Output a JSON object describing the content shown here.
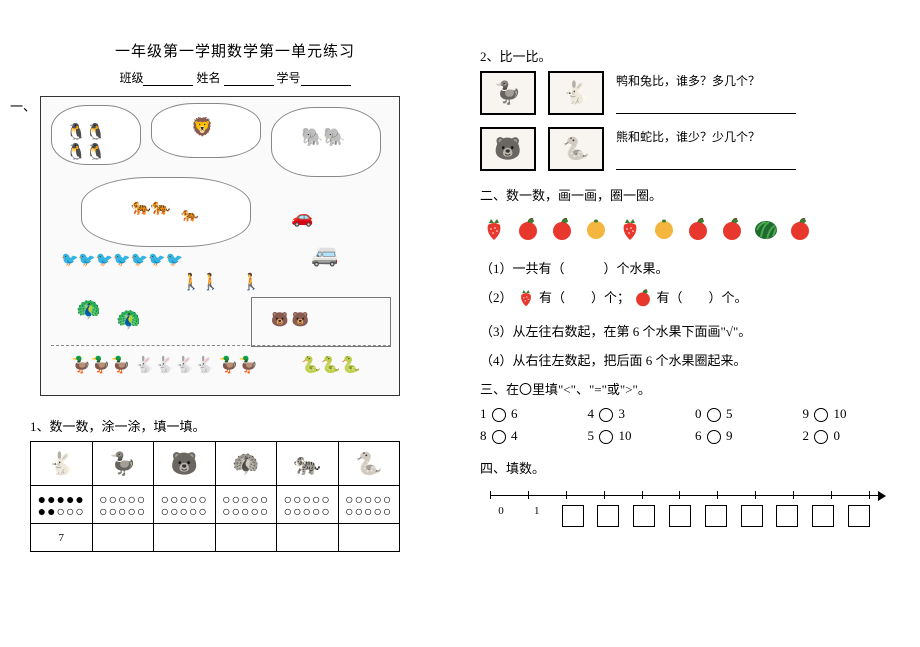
{
  "title": "一年级第一学期数学第一单元练习",
  "info": {
    "class_label": "班级",
    "name_label": "姓名",
    "id_label": "学号"
  },
  "section_one_marker": "一、",
  "q1": {
    "label": "1、数一数，涂一涂，填一填。",
    "animals": [
      "rabbit",
      "duck",
      "bear",
      "peacock",
      "tiger",
      "snake"
    ],
    "dots": {
      "filled_col0": 7,
      "empty_pattern": "○○○○○\n○○○○○"
    },
    "nums": [
      "7",
      "",
      "",
      "",
      "",
      ""
    ]
  },
  "q2": {
    "label": "2、比一比。",
    "row1": {
      "left": "duck",
      "right": "rabbit",
      "text": "鸭和兔比，谁多？多几个？"
    },
    "row2": {
      "left": "bear",
      "right": "snake",
      "text": "熊和蛇比，谁少？少几个？"
    }
  },
  "sec2": {
    "label": "二、数一数，画一画，圈一圈。",
    "fruits": [
      "strawberry",
      "apple",
      "apple",
      "orange",
      "strawberry",
      "orange",
      "apple",
      "apple",
      "watermelon",
      "apple"
    ],
    "sub1": "（1）一共有（　　　）个水果。",
    "sub2_a": "（2）",
    "sub2_b": "有（　　）个；",
    "sub2_c": "有（　　）个。",
    "sub3": "（3）从左往右数起，在第 6 个水果下面画\"√\"。",
    "sub4": "（4）从右往左数起，把后面 6 个水果圈起来。"
  },
  "sec3": {
    "label": "三、在〇里填\"<\"、\"=\"或\">\"。",
    "items": [
      "1 〇 6",
      "4 〇 3",
      "0 〇 5",
      "9 〇 10",
      "8 〇 4",
      "5 〇 10",
      "6 〇 9",
      "2 〇 0"
    ]
  },
  "sec4": {
    "label": "四、填数。",
    "start_labels": [
      "0",
      "1"
    ],
    "box_count": 9
  },
  "colors": {
    "apple": "#e8382d",
    "apple_leaf": "#3a7d2e",
    "strawberry": "#e8382d",
    "strawberry_leaf": "#3a7d2e",
    "orange": "#f4b63f",
    "watermelon_dark": "#1d6b2e",
    "watermelon_light": "#4aa84a"
  },
  "animal_glyphs": {
    "rabbit": "🐇",
    "duck": "🦆",
    "bear": "🐻",
    "peacock": "🦚",
    "tiger": "🐅",
    "snake": "🐍"
  }
}
